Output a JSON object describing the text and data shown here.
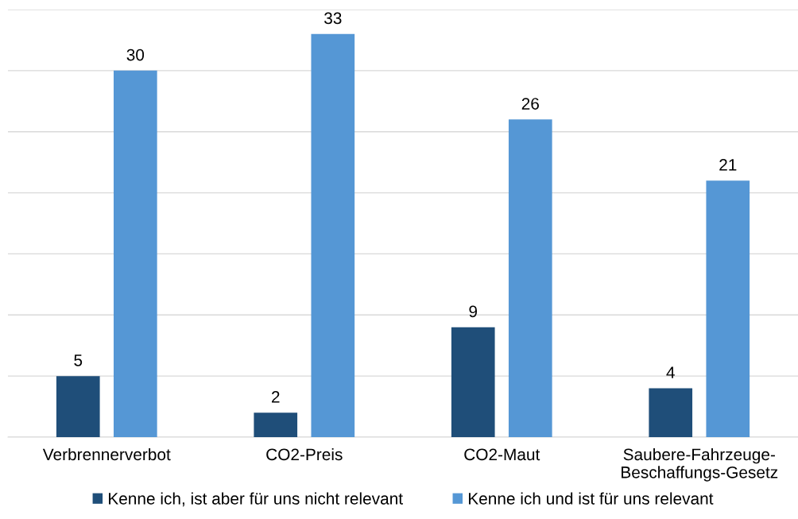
{
  "chart_data": {
    "type": "bar",
    "categories": [
      "Verbrennerverbot",
      "CO2-Preis",
      "CO2-Maut",
      "Saubere-Fahrzeuge-\nBeschaffungs-Gesetz"
    ],
    "series": [
      {
        "name": "Kenne ich, ist aber für uns nicht relevant",
        "color": "#1f4e79",
        "values": [
          5,
          2,
          9,
          4
        ]
      },
      {
        "name": "Kenne ich und ist für uns relevant",
        "color": "#5597d5",
        "values": [
          30,
          33,
          26,
          21
        ]
      }
    ],
    "ylim": [
      0,
      35
    ],
    "yticks": [
      {
        "value": 0,
        "label": null
      },
      {
        "value": 5,
        "label": null
      },
      {
        "value": 10,
        "label": null
      },
      {
        "value": 15,
        "label": null
      },
      {
        "value": 20,
        "label": null
      },
      {
        "value": 25,
        "label": null
      },
      {
        "value": 30,
        "label": null
      },
      {
        "value": 35,
        "label": null
      }
    ],
    "grid": "y",
    "legend": "bottom",
    "data_labels": true,
    "tick_labels": "x"
  }
}
